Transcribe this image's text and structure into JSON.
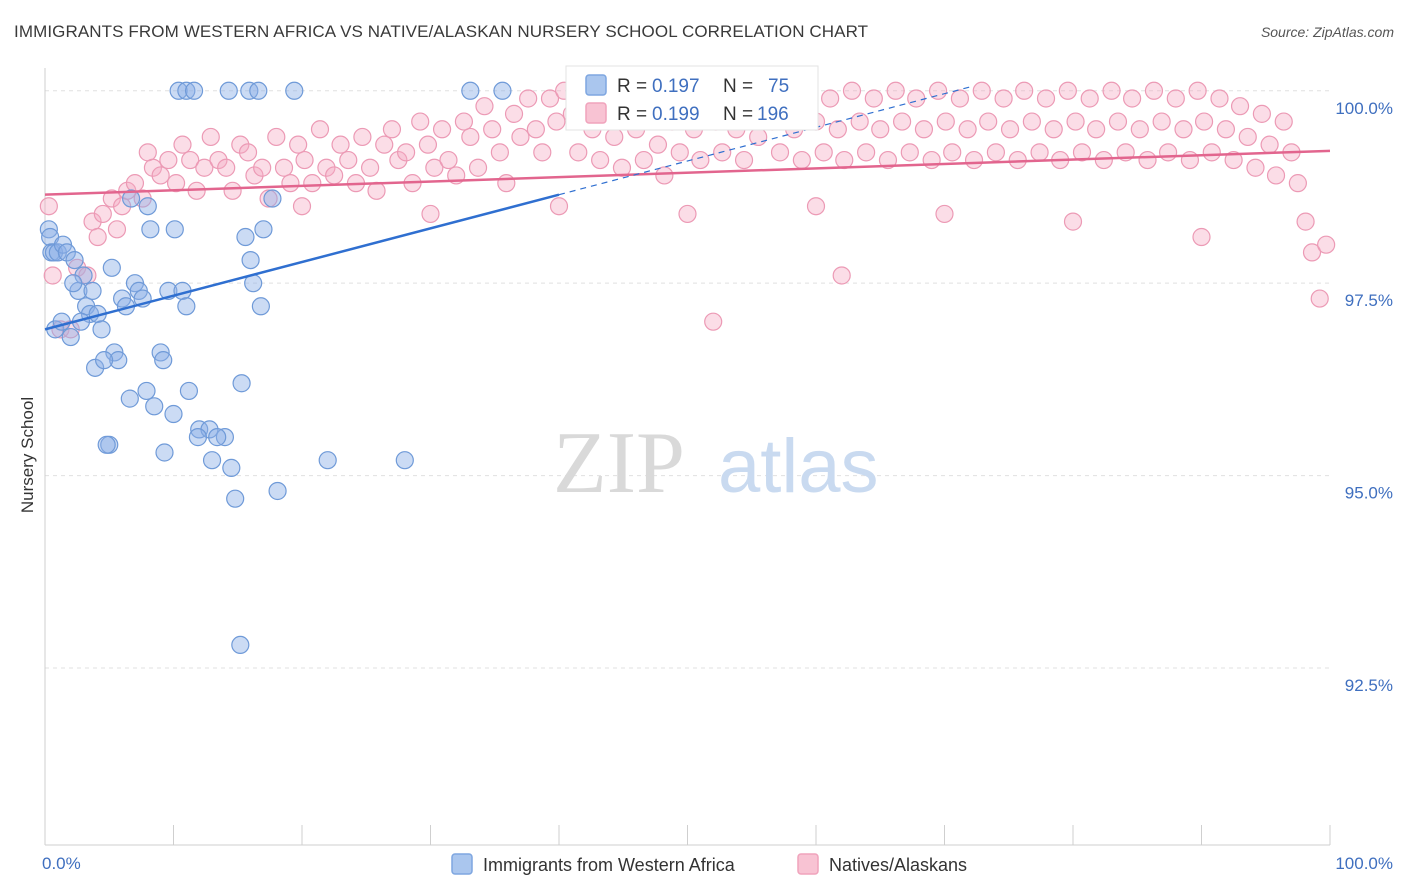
{
  "title": "IMMIGRANTS FROM WESTERN AFRICA VS NATIVE/ALASKAN NURSERY SCHOOL CORRELATION CHART",
  "source": "Source: ZipAtlas.com",
  "watermark": {
    "zip": "ZIP",
    "atlas": "atlas"
  },
  "chart_data": {
    "type": "scatter",
    "ylabel": "Nursery School",
    "x_tick_labels": [
      "0.0%",
      "100.0%"
    ],
    "y_tick_labels": [
      "100.0%",
      "97.5%",
      "95.0%",
      "92.5%"
    ],
    "y_tick_values": [
      100.0,
      97.5,
      95.0,
      92.5
    ],
    "xlim": [
      0,
      100
    ],
    "ylim": [
      90.2,
      100.4
    ],
    "legend": {
      "r_label": "R =",
      "n_label": "N =",
      "entries": [
        {
          "r": "0.197",
          "n": "75"
        },
        {
          "r": "0.199",
          "n": "196"
        }
      ]
    },
    "series": [
      {
        "name": "Immigrants from Western Africa",
        "color": "#7ea6e0",
        "line_color": "#2f6fd0",
        "trend": {
          "x0": 0,
          "y0": 96.9,
          "x1": 40,
          "y1": 98.65,
          "dash_to_x": 72,
          "dash_to_y": 100.05
        },
        "points": [
          [
            10.4,
            100.0
          ],
          [
            11.0,
            100.0
          ],
          [
            11.6,
            100.0
          ],
          [
            14.3,
            100.0
          ],
          [
            15.9,
            100.0
          ],
          [
            16.6,
            100.0
          ],
          [
            19.4,
            100.0
          ],
          [
            33.1,
            100.0
          ],
          [
            35.6,
            100.0
          ],
          [
            0.3,
            98.2
          ],
          [
            0.4,
            98.1
          ],
          [
            0.5,
            97.9
          ],
          [
            0.7,
            97.9
          ],
          [
            1.0,
            97.9
          ],
          [
            1.4,
            98.0
          ],
          [
            1.7,
            97.9
          ],
          [
            2.3,
            97.8
          ],
          [
            2.6,
            97.4
          ],
          [
            3.2,
            97.2
          ],
          [
            3.5,
            97.1
          ],
          [
            3.7,
            97.4
          ],
          [
            4.1,
            97.1
          ],
          [
            4.4,
            96.9
          ],
          [
            5.2,
            97.7
          ],
          [
            5.4,
            96.6
          ],
          [
            5.7,
            96.5
          ],
          [
            6.0,
            97.3
          ],
          [
            6.3,
            97.2
          ],
          [
            7.0,
            97.5
          ],
          [
            7.3,
            97.4
          ],
          [
            7.6,
            97.3
          ],
          [
            8.2,
            98.2
          ],
          [
            9.0,
            96.6
          ],
          [
            9.2,
            96.5
          ],
          [
            9.6,
            97.4
          ],
          [
            10.1,
            98.2
          ],
          [
            10.7,
            97.4
          ],
          [
            11.0,
            97.2
          ],
          [
            11.2,
            96.1
          ],
          [
            12.0,
            95.6
          ],
          [
            12.8,
            95.6
          ],
          [
            13.0,
            95.2
          ],
          [
            14.0,
            95.5
          ],
          [
            14.5,
            95.1
          ],
          [
            15.3,
            96.2
          ],
          [
            15.6,
            98.1
          ],
          [
            16.0,
            97.8
          ],
          [
            16.2,
            97.5
          ],
          [
            16.8,
            97.2
          ],
          [
            17.0,
            98.2
          ],
          [
            17.7,
            98.6
          ],
          [
            18.1,
            94.8
          ],
          [
            0.8,
            96.9
          ],
          [
            1.3,
            97.0
          ],
          [
            2.0,
            96.8
          ],
          [
            2.8,
            97.0
          ],
          [
            3.9,
            96.4
          ],
          [
            4.6,
            96.5
          ],
          [
            6.6,
            96.0
          ],
          [
            7.9,
            96.1
          ],
          [
            8.5,
            95.9
          ],
          [
            9.3,
            95.3
          ],
          [
            10.0,
            95.8
          ],
          [
            11.9,
            95.5
          ],
          [
            13.4,
            95.5
          ],
          [
            14.8,
            94.7
          ],
          [
            6.7,
            98.6
          ],
          [
            8.0,
            98.5
          ],
          [
            5.0,
            95.4
          ],
          [
            22.0,
            95.2
          ],
          [
            28.0,
            95.2
          ],
          [
            15.2,
            92.8
          ],
          [
            4.8,
            95.4
          ],
          [
            3.0,
            97.6
          ],
          [
            2.2,
            97.5
          ]
        ]
      },
      {
        "name": "Natives/Alaskans",
        "color": "#f0a3bc",
        "line_color": "#e2658e",
        "trend": {
          "x0": 0,
          "y0": 98.65,
          "x1": 100,
          "y1": 99.22
        },
        "points": [
          [
            0.3,
            98.5
          ],
          [
            0.6,
            97.6
          ],
          [
            1.2,
            96.9
          ],
          [
            2.0,
            96.9
          ],
          [
            2.5,
            97.7
          ],
          [
            3.3,
            97.6
          ],
          [
            3.7,
            98.3
          ],
          [
            4.1,
            98.1
          ],
          [
            4.5,
            98.4
          ],
          [
            5.2,
            98.6
          ],
          [
            5.6,
            98.2
          ],
          [
            6.0,
            98.5
          ],
          [
            6.4,
            98.7
          ],
          [
            7.0,
            98.8
          ],
          [
            7.6,
            98.6
          ],
          [
            8.0,
            99.2
          ],
          [
            8.4,
            99.0
          ],
          [
            9.0,
            98.9
          ],
          [
            9.6,
            99.1
          ],
          [
            10.2,
            98.8
          ],
          [
            10.7,
            99.3
          ],
          [
            11.3,
            99.1
          ],
          [
            11.8,
            98.7
          ],
          [
            12.4,
            99.0
          ],
          [
            12.9,
            99.4
          ],
          [
            13.5,
            99.1
          ],
          [
            14.1,
            99.0
          ],
          [
            14.6,
            98.7
          ],
          [
            15.2,
            99.3
          ],
          [
            15.8,
            99.2
          ],
          [
            16.3,
            98.9
          ],
          [
            16.9,
            99.0
          ],
          [
            17.4,
            98.6
          ],
          [
            18.0,
            99.4
          ],
          [
            18.6,
            99.0
          ],
          [
            19.1,
            98.8
          ],
          [
            19.7,
            99.3
          ],
          [
            20.2,
            99.1
          ],
          [
            20.8,
            98.8
          ],
          [
            21.4,
            99.5
          ],
          [
            21.9,
            99.0
          ],
          [
            22.5,
            98.9
          ],
          [
            23.0,
            99.3
          ],
          [
            23.6,
            99.1
          ],
          [
            24.2,
            98.8
          ],
          [
            24.7,
            99.4
          ],
          [
            25.3,
            99.0
          ],
          [
            25.8,
            98.7
          ],
          [
            26.4,
            99.3
          ],
          [
            27.0,
            99.5
          ],
          [
            27.5,
            99.1
          ],
          [
            28.1,
            99.2
          ],
          [
            28.6,
            98.8
          ],
          [
            29.2,
            99.6
          ],
          [
            29.8,
            99.3
          ],
          [
            30.3,
            99.0
          ],
          [
            30.9,
            99.5
          ],
          [
            31.4,
            99.1
          ],
          [
            32.0,
            98.9
          ],
          [
            32.6,
            99.6
          ],
          [
            33.1,
            99.4
          ],
          [
            33.7,
            99.0
          ],
          [
            34.2,
            99.8
          ],
          [
            34.8,
            99.5
          ],
          [
            35.4,
            99.2
          ],
          [
            35.9,
            98.8
          ],
          [
            36.5,
            99.7
          ],
          [
            37.0,
            99.4
          ],
          [
            37.6,
            99.9
          ],
          [
            38.2,
            99.5
          ],
          [
            38.7,
            99.2
          ],
          [
            39.3,
            99.9
          ],
          [
            39.8,
            99.6
          ],
          [
            40.4,
            100.0
          ],
          [
            41.0,
            99.7
          ],
          [
            41.5,
            99.2
          ],
          [
            42.1,
            99.9
          ],
          [
            42.6,
            99.5
          ],
          [
            43.2,
            99.1
          ],
          [
            43.8,
            99.8
          ],
          [
            44.3,
            99.4
          ],
          [
            44.9,
            99.0
          ],
          [
            45.4,
            99.9
          ],
          [
            46.0,
            99.5
          ],
          [
            46.6,
            99.1
          ],
          [
            47.1,
            99.8
          ],
          [
            47.7,
            99.3
          ],
          [
            48.2,
            98.9
          ],
          [
            48.8,
            99.6
          ],
          [
            49.4,
            99.2
          ],
          [
            49.9,
            99.9
          ],
          [
            50.5,
            99.5
          ],
          [
            51.0,
            99.1
          ],
          [
            51.6,
            100.0
          ],
          [
            52.2,
            99.6
          ],
          [
            52.7,
            99.2
          ],
          [
            53.3,
            99.9
          ],
          [
            53.8,
            99.5
          ],
          [
            54.4,
            99.1
          ],
          [
            55.0,
            99.8
          ],
          [
            55.5,
            99.4
          ],
          [
            56.1,
            100.0
          ],
          [
            56.6,
            99.6
          ],
          [
            57.2,
            99.2
          ],
          [
            57.8,
            99.9
          ],
          [
            58.3,
            99.5
          ],
          [
            58.9,
            99.1
          ],
          [
            59.4,
            100.0
          ],
          [
            60.0,
            99.6
          ],
          [
            60.6,
            99.2
          ],
          [
            61.1,
            99.9
          ],
          [
            61.7,
            99.5
          ],
          [
            62.2,
            99.1
          ],
          [
            62.8,
            100.0
          ],
          [
            63.4,
            99.6
          ],
          [
            63.9,
            99.2
          ],
          [
            64.5,
            99.9
          ],
          [
            65.0,
            99.5
          ],
          [
            65.6,
            99.1
          ],
          [
            66.2,
            100.0
          ],
          [
            66.7,
            99.6
          ],
          [
            67.3,
            99.2
          ],
          [
            67.8,
            99.9
          ],
          [
            68.4,
            99.5
          ],
          [
            69.0,
            99.1
          ],
          [
            69.5,
            100.0
          ],
          [
            70.1,
            99.6
          ],
          [
            70.6,
            99.2
          ],
          [
            71.2,
            99.9
          ],
          [
            71.8,
            99.5
          ],
          [
            72.3,
            99.1
          ],
          [
            72.9,
            100.0
          ],
          [
            73.4,
            99.6
          ],
          [
            74.0,
            99.2
          ],
          [
            74.6,
            99.9
          ],
          [
            75.1,
            99.5
          ],
          [
            75.7,
            99.1
          ],
          [
            76.2,
            100.0
          ],
          [
            76.8,
            99.6
          ],
          [
            77.4,
            99.2
          ],
          [
            77.9,
            99.9
          ],
          [
            78.5,
            99.5
          ],
          [
            79.0,
            99.1
          ],
          [
            79.6,
            100.0
          ],
          [
            80.2,
            99.6
          ],
          [
            80.7,
            99.2
          ],
          [
            81.3,
            99.9
          ],
          [
            81.8,
            99.5
          ],
          [
            82.4,
            99.1
          ],
          [
            83.0,
            100.0
          ],
          [
            83.5,
            99.6
          ],
          [
            84.1,
            99.2
          ],
          [
            84.6,
            99.9
          ],
          [
            85.2,
            99.5
          ],
          [
            85.8,
            99.1
          ],
          [
            86.3,
            100.0
          ],
          [
            86.9,
            99.6
          ],
          [
            87.4,
            99.2
          ],
          [
            88.0,
            99.9
          ],
          [
            88.6,
            99.5
          ],
          [
            89.1,
            99.1
          ],
          [
            89.7,
            100.0
          ],
          [
            90.2,
            99.6
          ],
          [
            90.8,
            99.2
          ],
          [
            91.4,
            99.9
          ],
          [
            91.9,
            99.5
          ],
          [
            92.5,
            99.1
          ],
          [
            93.0,
            99.8
          ],
          [
            93.6,
            99.4
          ],
          [
            94.2,
            99.0
          ],
          [
            94.7,
            99.7
          ],
          [
            95.3,
            99.3
          ],
          [
            95.8,
            98.9
          ],
          [
            96.4,
            99.6
          ],
          [
            97.0,
            99.2
          ],
          [
            97.5,
            98.8
          ],
          [
            98.1,
            98.3
          ],
          [
            98.6,
            97.9
          ],
          [
            99.2,
            97.3
          ],
          [
            99.7,
            98.0
          ],
          [
            20.0,
            98.5
          ],
          [
            30.0,
            98.4
          ],
          [
            40.0,
            98.5
          ],
          [
            50.0,
            98.4
          ],
          [
            60.0,
            98.5
          ],
          [
            70.0,
            98.4
          ],
          [
            80.0,
            98.3
          ],
          [
            90.0,
            98.1
          ],
          [
            62.0,
            97.6
          ],
          [
            52.0,
            97.0
          ]
        ]
      }
    ],
    "bottom_legend": [
      "Immigrants from Western Africa",
      "Natives/Alaskans"
    ]
  }
}
